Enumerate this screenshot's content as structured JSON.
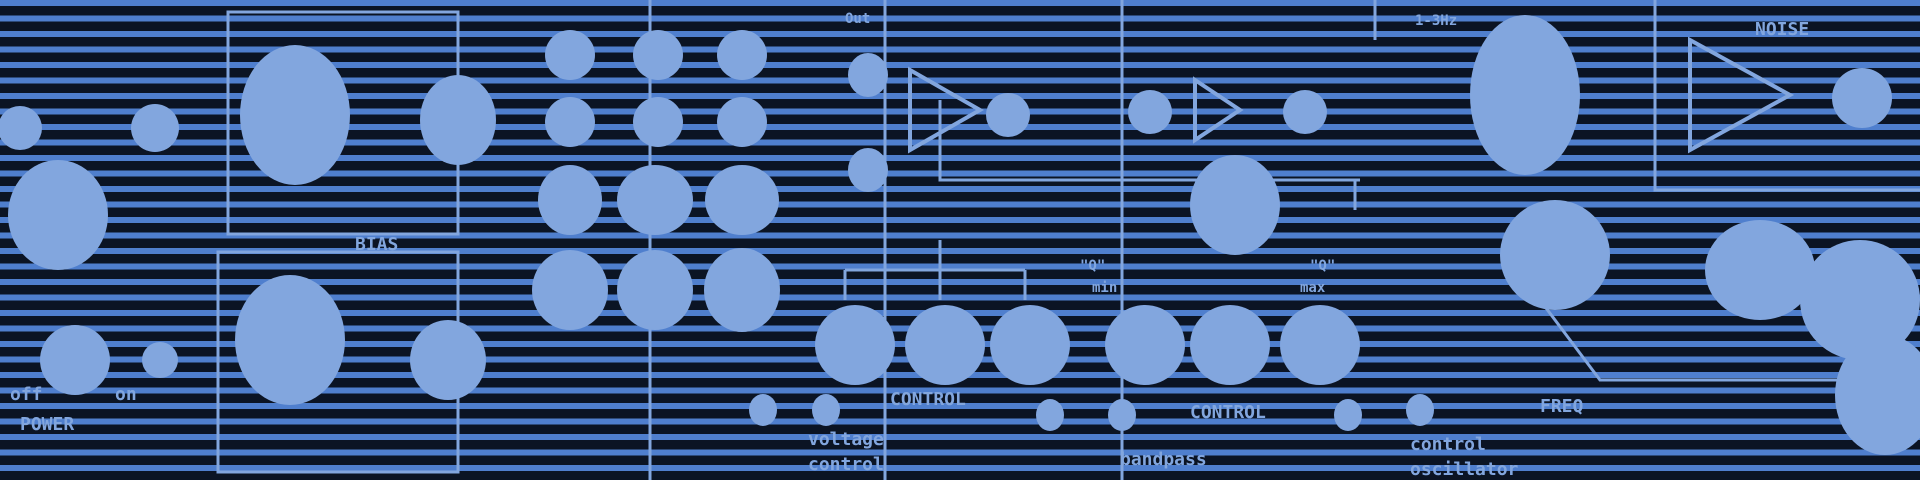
{
  "image": {
    "description_colors": {
      "stripe_light": "#4f7fce",
      "stripe_dark": "#0b1424",
      "panel_marks": "#82a6de"
    },
    "panel_lettering": {
      "power": "POWER",
      "off": "off",
      "on": "on",
      "bias": "BIAS",
      "control_1": "CONTROL",
      "control_2": "CONTROL",
      "voltage": "voltage",
      "control_word": "control",
      "bandpass": "bandpass",
      "min": "min",
      "max": "max",
      "q_1": "\"Q\"",
      "q_2": "\"Q\"",
      "freq": "FREQ",
      "control_osc": "control",
      "oscillator": "oscillator",
      "noise": "NOISE",
      "range": "1-3Hz",
      "out": "Out"
    }
  }
}
